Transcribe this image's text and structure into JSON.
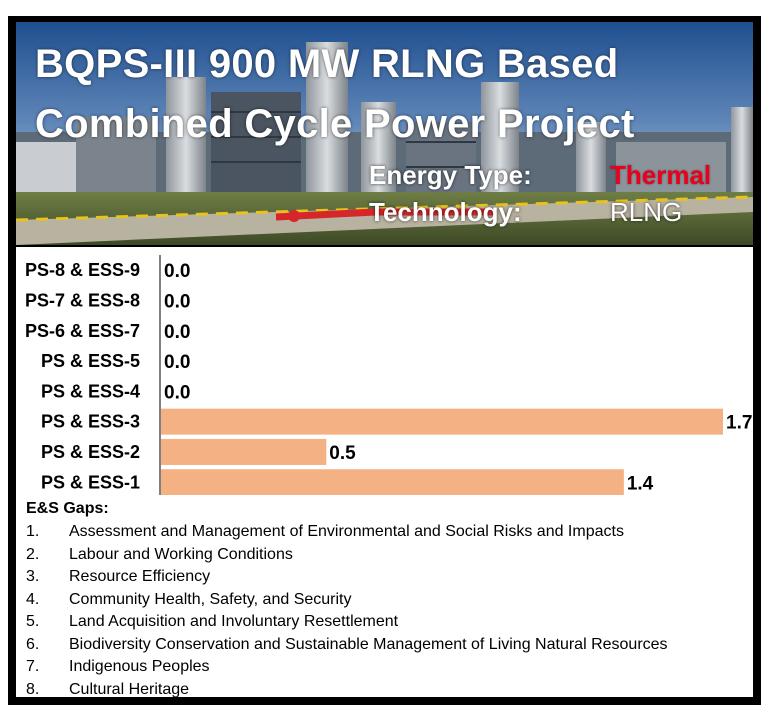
{
  "banner": {
    "title_line1": "BQPS-III 900 MW RLNG Based",
    "title_line2": "Combined Cycle Power Project",
    "energy_type_label": "Energy Type:",
    "energy_type_value": "Thermal",
    "technology_label": "Technology:",
    "technology_value": "RLNG"
  },
  "chart_data": {
    "type": "bar",
    "orientation": "horizontal",
    "categories": [
      "PS-8 & ESS-9",
      "PS-7 & ESS-8",
      "PS-6 & ESS-7",
      "PS & ESS-5",
      "PS & ESS-4",
      "PS & ESS-3",
      "PS & ESS-2",
      "PS & ESS-1"
    ],
    "values": [
      0.0,
      0.0,
      0.0,
      0.0,
      0.0,
      1.7,
      0.5,
      1.4
    ],
    "value_labels": [
      "0.0",
      "0.0",
      "0.0",
      "0.0",
      "0.0",
      "1.7",
      "0.5",
      "1.4"
    ],
    "xlim": [
      0,
      1.7
    ],
    "bar_color": "#f4b183",
    "grid": false,
    "legend": "none"
  },
  "gaps": {
    "heading": "E&S Gaps:",
    "items": [
      {
        "num": "1.",
        "text": "Assessment and Management of Environmental and Social Risks and Impacts"
      },
      {
        "num": "2.",
        "text": "Labour and Working Conditions"
      },
      {
        "num": "3.",
        "text": "Resource Efficiency"
      },
      {
        "num": "4.",
        "text": "Community Health, Safety, and Security"
      },
      {
        "num": "5.",
        "text": "Land Acquisition and Involuntary Resettlement"
      },
      {
        "num": "6.",
        "text": "Biodiversity Conservation and Sustainable Management of Living Natural Resources"
      },
      {
        "num": "7.",
        "text": "Indigenous Peoples"
      },
      {
        "num": "8.",
        "text": "Cultural Heritage"
      }
    ]
  }
}
